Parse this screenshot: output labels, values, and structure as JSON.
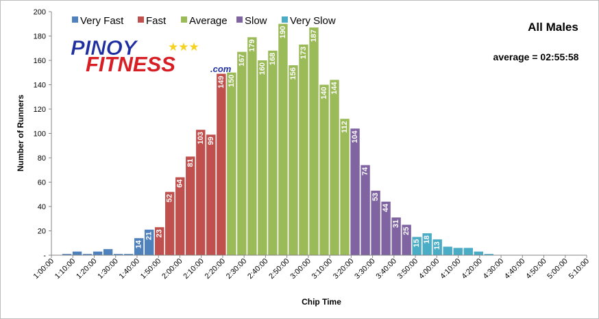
{
  "chart_data": {
    "type": "bar",
    "title": "All Males",
    "annotation": "average = 02:55:58",
    "xlabel": "Chip Time",
    "ylabel": "Number of Runners",
    "ylim": [
      0,
      200
    ],
    "y_ticks": [
      "-",
      "20",
      "40",
      "60",
      "80",
      "100",
      "120",
      "140",
      "160",
      "180",
      "200"
    ],
    "x_tick_labels": [
      "1:00:00",
      "1:10:00",
      "1:20:00",
      "1:30:00",
      "1:40:00",
      "1:50:00",
      "2:00:00",
      "2:10:00",
      "2:20:00",
      "2:30:00",
      "2:40:00",
      "2:50:00",
      "3:00:00",
      "3:10:00",
      "3:20:00",
      "3:30:00",
      "3:40:00",
      "3:50:00",
      "4:00:00",
      "4:10:00",
      "4:20:00",
      "4:30:00",
      "4:40:00",
      "4:50:00",
      "5:00:00",
      "5:10:00"
    ],
    "grid": false,
    "legend_position": "top-left",
    "legend": [
      {
        "name": "Very Fast",
        "color": "#4f81bd"
      },
      {
        "name": "Fast",
        "color": "#c0504d"
      },
      {
        "name": "Average",
        "color": "#9bbb59"
      },
      {
        "name": "Slow",
        "color": "#8064a2"
      },
      {
        "name": "Very Slow",
        "color": "#4bacc6"
      }
    ],
    "bars": [
      {
        "value": 0,
        "group": 0
      },
      {
        "value": 1,
        "group": 0
      },
      {
        "value": 3,
        "group": 0
      },
      {
        "value": 1,
        "group": 0
      },
      {
        "value": 3,
        "group": 0
      },
      {
        "value": 5,
        "group": 0
      },
      {
        "value": 1,
        "group": 0
      },
      {
        "value": 1,
        "group": 0
      },
      {
        "value": 14,
        "group": 0,
        "label": "14"
      },
      {
        "value": 21,
        "group": 0,
        "label": "21"
      },
      {
        "value": 23,
        "group": 1,
        "label": "23"
      },
      {
        "value": 52,
        "group": 1,
        "label": "52"
      },
      {
        "value": 64,
        "group": 1,
        "label": "64"
      },
      {
        "value": 81,
        "group": 1,
        "label": "81"
      },
      {
        "value": 103,
        "group": 1,
        "label": "103"
      },
      {
        "value": 99,
        "group": 1,
        "label": "99"
      },
      {
        "value": 149,
        "group": 1,
        "label": "149"
      },
      {
        "value": 150,
        "group": 2,
        "label": "150"
      },
      {
        "value": 167,
        "group": 2,
        "label": "167"
      },
      {
        "value": 179,
        "group": 2,
        "label": "179"
      },
      {
        "value": 160,
        "group": 2,
        "label": "160"
      },
      {
        "value": 168,
        "group": 2,
        "label": "168"
      },
      {
        "value": 190,
        "group": 2,
        "label": "190"
      },
      {
        "value": 156,
        "group": 2,
        "label": "156"
      },
      {
        "value": 173,
        "group": 2,
        "label": "173"
      },
      {
        "value": 187,
        "group": 2,
        "label": "187"
      },
      {
        "value": 140,
        "group": 2,
        "label": "140"
      },
      {
        "value": 144,
        "group": 2,
        "label": "144"
      },
      {
        "value": 112,
        "group": 2,
        "label": "112"
      },
      {
        "value": 104,
        "group": 3,
        "label": "104"
      },
      {
        "value": 74,
        "group": 3,
        "label": "74"
      },
      {
        "value": 53,
        "group": 3,
        "label": "53"
      },
      {
        "value": 44,
        "group": 3,
        "label": "44"
      },
      {
        "value": 31,
        "group": 3,
        "label": "31"
      },
      {
        "value": 25,
        "group": 3,
        "label": "25"
      },
      {
        "value": 15,
        "group": 4,
        "label": "15"
      },
      {
        "value": 18,
        "group": 4,
        "label": "18"
      },
      {
        "value": 13,
        "group": 4,
        "label": "13"
      },
      {
        "value": 7,
        "group": 4
      },
      {
        "value": 6,
        "group": 4
      },
      {
        "value": 6,
        "group": 4
      },
      {
        "value": 3,
        "group": 4
      },
      {
        "value": 1,
        "group": 4
      },
      {
        "value": 0,
        "group": 4
      },
      {
        "value": 0,
        "group": 4
      },
      {
        "value": 0,
        "group": 4
      },
      {
        "value": 0,
        "group": 4
      },
      {
        "value": 0,
        "group": 4
      },
      {
        "value": 0,
        "group": 4
      },
      {
        "value": 0,
        "group": 4
      },
      {
        "value": 0,
        "group": 4
      },
      {
        "value": 0,
        "group": 4
      }
    ]
  },
  "logo": {
    "line1": "PINOY",
    "line2": "FITNESS",
    "suffix": ".com",
    "stars": "★★★",
    "colors": {
      "blue": "#1f2fa0",
      "red": "#d81e25",
      "star": "#f6d21e"
    }
  }
}
